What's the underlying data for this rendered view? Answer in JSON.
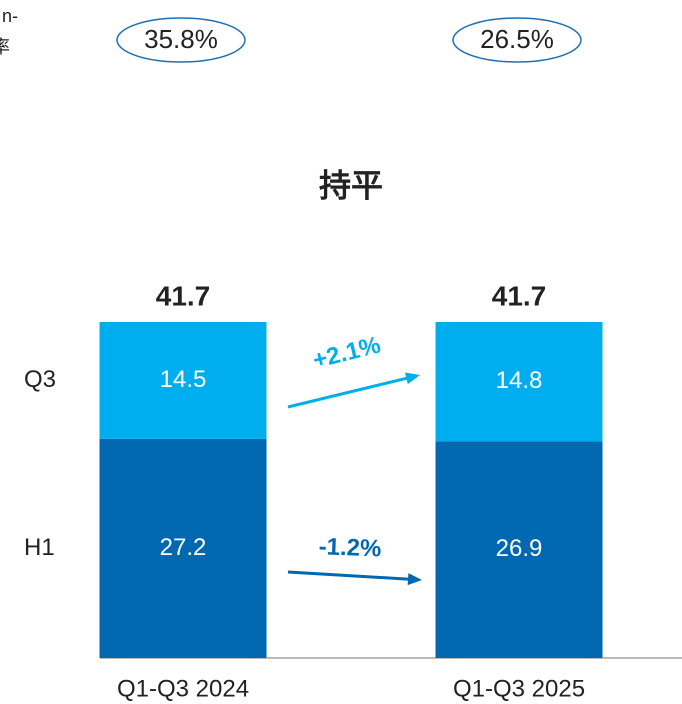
{
  "chart_data": {
    "type": "stacked_bar",
    "title": "持平",
    "categories": [
      "Q1-Q3 2024",
      "Q1-Q3 2025"
    ],
    "series": [
      {
        "name": "H1",
        "color": "#0067b1",
        "values": [
          27.2,
          26.9
        ]
      },
      {
        "name": "Q3",
        "color": "#00aeef",
        "values": [
          14.5,
          14.8
        ]
      }
    ],
    "totals": [
      41.7,
      41.7
    ],
    "ylim": [
      0,
      41.7
    ],
    "badges": [
      "35.8%",
      "26.5%"
    ],
    "changes": [
      "-1.2%",
      "+2.1%"
    ],
    "corner_text": [
      "n-",
      "率"
    ]
  }
}
